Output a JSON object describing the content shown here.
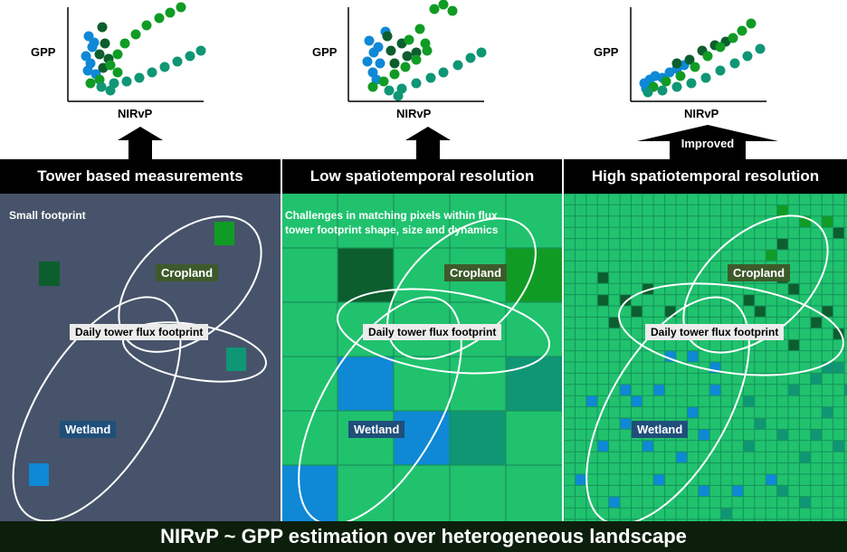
{
  "colors": {
    "panel1_bg": "#46536a",
    "panel_green": "#20c26e",
    "dark_green": "#0d5e2e",
    "mid_green": "#109c24",
    "blue": "#0f88d6",
    "teal": "#0f9675",
    "header_bg": "#000000",
    "footer_bg": "#0c1f0c"
  },
  "scatter_plots": [
    {
      "ylabel": "GPP",
      "xlabel": "NIRvP"
    },
    {
      "ylabel": "GPP",
      "xlabel": "NIRvP"
    },
    {
      "ylabel": "GPP",
      "xlabel": "NIRvP"
    }
  ],
  "arrow3_label": "Improved",
  "headers": [
    "Tower based measurements",
    "Low spatiotemporal resolution",
    "High spatiotemporal resolution"
  ],
  "panel1": {
    "note": "Small footprint",
    "cropland": "Cropland",
    "footprint": "Daily tower flux footprint",
    "wetland": "Wetland"
  },
  "panel2": {
    "note_line1": "Challenges in matching pixels within flux",
    "note_line2": "tower footprint shape, size and dynamics",
    "cropland": "Cropland",
    "footprint": "Daily tower flux footprint",
    "wetland": "Wetland"
  },
  "panel3": {
    "cropland": "Cropland",
    "footprint": "Daily tower flux footprint",
    "wetland": "Wetland"
  },
  "footer": "NIRvP ~ GPP estimation over heterogeneous landscape"
}
